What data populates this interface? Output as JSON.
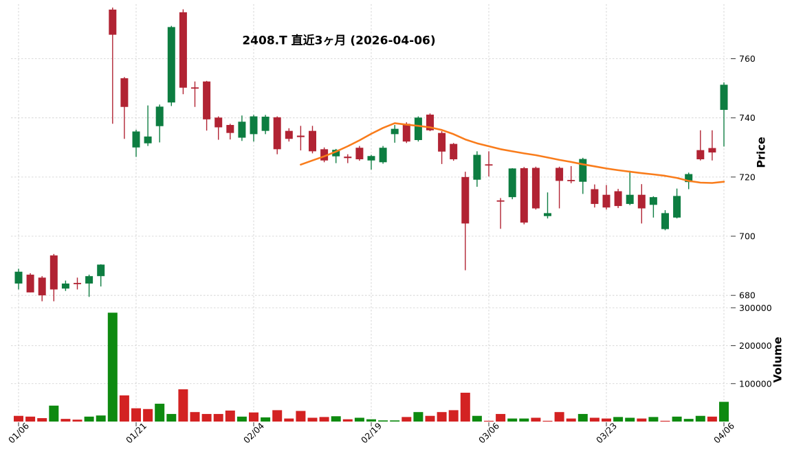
{
  "title": "2408.T 直近3ヶ月 (2026-04-06)",
  "axes": {
    "price_label": "Price",
    "volume_label": "Volume",
    "price_ticks": [
      760,
      740,
      720,
      700,
      680
    ],
    "volume_ticks": [
      300000,
      200000,
      100000
    ],
    "x_ticks": [
      {
        "label": "01/06",
        "index": 0
      },
      {
        "label": "01/21",
        "index": 10
      },
      {
        "label": "02/04",
        "index": 20
      },
      {
        "label": "02/19",
        "index": 30
      },
      {
        "label": "03/06",
        "index": 40
      },
      {
        "label": "03/23",
        "index": 50
      },
      {
        "label": "04/06",
        "index": 60
      }
    ]
  },
  "colors": {
    "candle_up": "#0d7d41",
    "candle_down": "#b12333",
    "volume_up": "#0e8a10",
    "volume_down": "#d32222",
    "ma_line": "#f97c1b",
    "grid": "#cdcdcd",
    "tick": "#333333",
    "text": "#000000"
  },
  "chart_data": {
    "type": "candlestick+volume",
    "title": "2408.T 直近3ヶ月 (2026-04-06)",
    "price_axis_range": [
      677,
      778
    ],
    "volume_axis_range": [
      0,
      310000
    ],
    "grid": true,
    "ma_line": {
      "name": "moving-average",
      "start_index": 24,
      "values": [
        724.2,
        725.6,
        727.0,
        728.6,
        730.4,
        732.4,
        734.6,
        736.6,
        738.2,
        737.7,
        737.3,
        736.8,
        735.9,
        734.5,
        732.7,
        731.4,
        730.4,
        729.4,
        728.7,
        728.0,
        727.4,
        726.6,
        725.8,
        725.1,
        724.3,
        723.6,
        722.9,
        722.3,
        721.8,
        721.3,
        720.9,
        720.4,
        719.7,
        718.7,
        718.1,
        718.0,
        718.4
      ]
    },
    "candle_columns": [
      "open",
      "high",
      "low",
      "close",
      "volume",
      "volume_color"
    ],
    "candles": [
      [
        684,
        689,
        682,
        688,
        15000,
        "r"
      ],
      [
        687,
        687.5,
        681,
        681,
        13000,
        "r"
      ],
      [
        686,
        686.5,
        678,
        680,
        9000,
        "r"
      ],
      [
        693.5,
        694,
        678,
        682,
        42000,
        "g"
      ],
      [
        682.3,
        685,
        681.5,
        684,
        7000,
        "r"
      ],
      [
        684.2,
        686,
        682,
        683.8,
        5000,
        "r"
      ],
      [
        684,
        687,
        679.5,
        686.5,
        13000,
        "g"
      ],
      [
        686.5,
        690.5,
        683,
        690.4,
        16000,
        "g"
      ],
      [
        776.6,
        777.3,
        738,
        768.1,
        287000,
        "g"
      ],
      [
        753.4,
        753.8,
        732.9,
        743.7,
        69000,
        "r"
      ],
      [
        730,
        736,
        726.8,
        735.4,
        35000,
        "r"
      ],
      [
        731.4,
        744.2,
        730.5,
        733.7,
        33000,
        "r"
      ],
      [
        737.2,
        744.5,
        731.7,
        743.8,
        47000,
        "g"
      ],
      [
        745.2,
        771.1,
        744,
        770.7,
        20000,
        "g"
      ],
      [
        775.7,
        776.7,
        748,
        750.2,
        85000,
        "r"
      ],
      [
        750.3,
        752.3,
        743.7,
        749.9,
        25000,
        "r"
      ],
      [
        752.3,
        752.5,
        735.7,
        739.5,
        20000,
        "r"
      ],
      [
        740.1,
        740.5,
        732.6,
        736.8,
        20000,
        "r"
      ],
      [
        737.6,
        738,
        732.7,
        734.9,
        29000,
        "r"
      ],
      [
        733.3,
        740.8,
        732.2,
        738.7,
        13000,
        "g"
      ],
      [
        734.5,
        741,
        732,
        740.5,
        24000,
        "r"
      ],
      [
        735.6,
        741,
        734.5,
        740.4,
        11000,
        "g"
      ],
      [
        740.2,
        740.5,
        727.7,
        729.4,
        30000,
        "r"
      ],
      [
        735.6,
        736.5,
        732,
        732.9,
        8000,
        "r"
      ],
      [
        734,
        737.3,
        729,
        733.5,
        28000,
        "r"
      ],
      [
        735.6,
        737.3,
        728,
        728.7,
        10000,
        "r"
      ],
      [
        729.4,
        730,
        725,
        725.6,
        12000,
        "r"
      ],
      [
        727,
        729.5,
        724.7,
        729.2,
        14000,
        "g"
      ],
      [
        726.9,
        727.7,
        724.7,
        726.4,
        6000,
        "r"
      ],
      [
        729.9,
        730.5,
        725.5,
        726,
        10000,
        "g"
      ],
      [
        725.6,
        727.5,
        722.5,
        727.1,
        6000,
        "g"
      ],
      [
        725,
        730.5,
        724.5,
        729.9,
        3000,
        "g"
      ],
      [
        734.5,
        737.6,
        731.6,
        736.3,
        3000,
        "g"
      ],
      [
        738,
        738.5,
        731.5,
        732,
        12000,
        "r"
      ],
      [
        732.5,
        740.5,
        732,
        740.1,
        25000,
        "g"
      ],
      [
        741.1,
        741.5,
        735.5,
        735.8,
        15000,
        "r"
      ],
      [
        734.9,
        735.5,
        724.4,
        728.6,
        25000,
        "r"
      ],
      [
        731.2,
        731.5,
        725.5,
        726,
        30000,
        "r"
      ],
      [
        720,
        721.8,
        688.5,
        704.3,
        76000,
        "r"
      ],
      [
        719.1,
        728.7,
        716.7,
        727.5,
        15000,
        "g"
      ],
      [
        724.3,
        728.7,
        720.2,
        723.9,
        2000,
        "r"
      ],
      [
        712.1,
        712.9,
        702.5,
        711.7,
        20000,
        "r"
      ],
      [
        713.2,
        723,
        712.5,
        722.9,
        8000,
        "g"
      ],
      [
        723,
        723.4,
        704,
        704.6,
        8000,
        "g"
      ],
      [
        723.1,
        723.5,
        709,
        709.4,
        10000,
        "r"
      ],
      [
        706.8,
        714.8,
        706,
        707.8,
        2000,
        "r"
      ],
      [
        723.1,
        723.5,
        709.4,
        718.7,
        25000,
        "r"
      ],
      [
        719,
        723.7,
        717.9,
        718.8,
        8000,
        "r"
      ],
      [
        718.4,
        726.5,
        714.3,
        726.1,
        20000,
        "g"
      ],
      [
        715.9,
        717.5,
        709.7,
        710.9,
        10000,
        "r"
      ],
      [
        714,
        717.3,
        709,
        709.7,
        8000,
        "r"
      ],
      [
        715.2,
        716,
        709.5,
        710.2,
        12000,
        "g"
      ],
      [
        710.9,
        722.1,
        710.5,
        714,
        10000,
        "g"
      ],
      [
        714,
        717.6,
        704.3,
        709.4,
        8000,
        "r"
      ],
      [
        710.6,
        713.5,
        706.3,
        713.2,
        12000,
        "g"
      ],
      [
        702.4,
        708.8,
        702,
        707.8,
        2000,
        "r"
      ],
      [
        706.3,
        716.1,
        706,
        713.6,
        13000,
        "g"
      ],
      [
        718.3,
        721.5,
        715.9,
        721,
        7000,
        "g"
      ],
      [
        729.1,
        735.8,
        725.6,
        726,
        15000,
        "g"
      ],
      [
        729.8,
        735.8,
        725.6,
        728.3,
        13000,
        "r"
      ],
      [
        742.7,
        752,
        730.3,
        751.2,
        52000,
        "g"
      ]
    ]
  }
}
